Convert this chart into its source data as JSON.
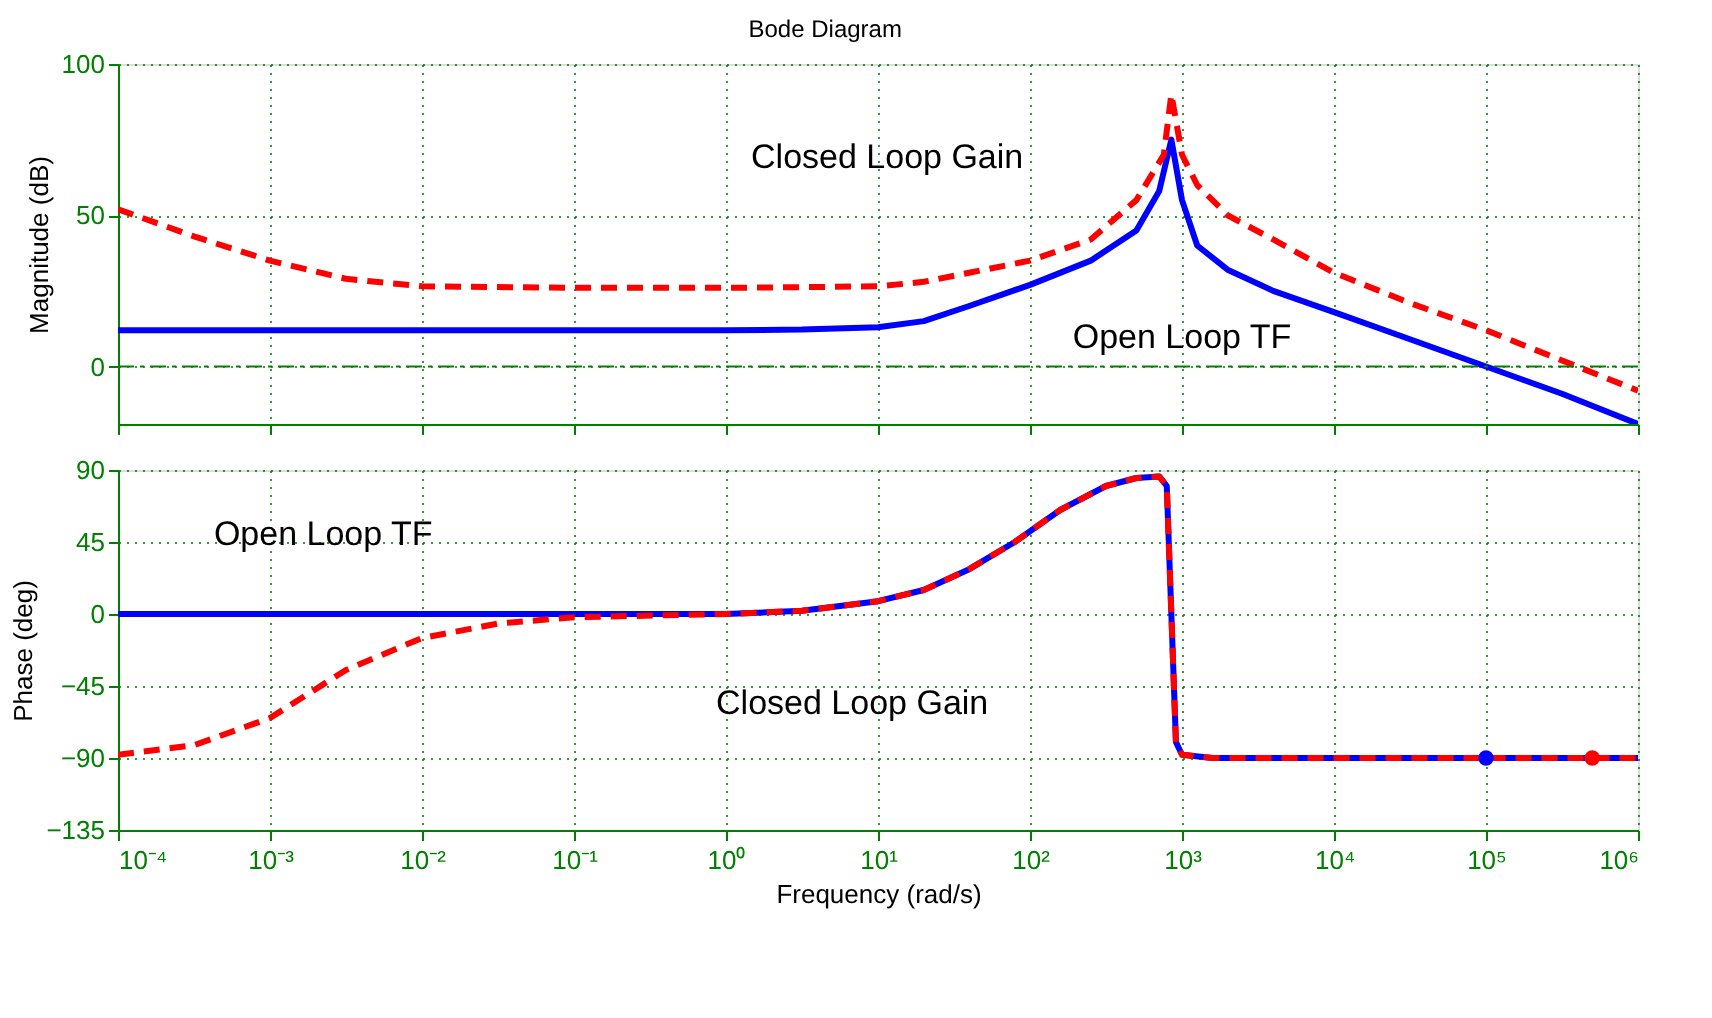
{
  "chart_data": [
    {
      "type": "line",
      "title": "Bode Diagram",
      "ylabel": "Magnitude (dB)",
      "log": "x",
      "grid": true,
      "legend": false,
      "tick_labels": "y",
      "xlim": [
        0.0001,
        1000000.0
      ],
      "xticks": [
        0.0001,
        0.001,
        0.01,
        0.1,
        1,
        10,
        100,
        1000,
        10000.0,
        100000.0,
        1000000.0
      ],
      "ylim": [
        -19,
        100
      ],
      "yticks": [
        0,
        50,
        100
      ],
      "series": [
        {
          "color": "#0000ff",
          "line_style": "solid",
          "x": [
            0.0001,
            1,
            3.16,
            10,
            20,
            39.8,
            100,
            251,
            501,
            708,
            851,
            1000,
            1259,
            1995,
            3981,
            10000.0,
            31623,
            100000.0,
            316228,
            1000000.0
          ],
          "values": [
            12,
            12,
            12.2,
            13,
            15,
            20,
            27,
            35,
            45,
            58,
            75,
            55,
            40,
            32,
            25,
            18,
            9,
            0,
            -9,
            -19
          ]
        },
        {
          "color": "#ff0000",
          "line_style": "dashed",
          "x": [
            0.0001,
            0.000316,
            0.001,
            0.00316,
            0.01,
            0.1,
            1,
            10,
            20,
            39.8,
            100,
            251,
            501,
            759,
            851,
            1000,
            1259,
            1995,
            3981,
            10000.0,
            31623,
            100000.0,
            316228,
            1000000.0
          ],
          "values": [
            52,
            43,
            35,
            29,
            26.5,
            26,
            26,
            26.5,
            28,
            31,
            35,
            42,
            55,
            70,
            90,
            70,
            60,
            50,
            42,
            31,
            21,
            12,
            2,
            -8
          ]
        }
      ],
      "ref_lines": [
        {
          "axis": "y",
          "value": 0,
          "color": "#008000",
          "line_style": "dashdot"
        }
      ],
      "annotations": [
        "Closed Loop Gain",
        "Open Loop TF"
      ]
    },
    {
      "type": "line",
      "xlabel": "Frequency (rad/s)",
      "ylabel": "Phase (deg)",
      "log": "x",
      "grid": true,
      "legend": false,
      "xlim": [
        0.0001,
        1000000.0
      ],
      "xticks": [
        {
          "value": 0.0001,
          "label": "10⁻⁴"
        },
        {
          "value": 0.001,
          "label": "10⁻³"
        },
        {
          "value": 0.01,
          "label": "10⁻²"
        },
        {
          "value": 0.1,
          "label": "10⁻¹"
        },
        {
          "value": 1,
          "label": "10⁰"
        },
        {
          "value": 10,
          "label": "10¹"
        },
        {
          "value": 100,
          "label": "10²"
        },
        {
          "value": 1000,
          "label": "10³"
        },
        {
          "value": 10000.0,
          "label": "10⁴"
        },
        {
          "value": 100000.0,
          "label": "10⁵"
        },
        {
          "value": 1000000.0,
          "label": "10⁶"
        }
      ],
      "ylim": [
        -135,
        90
      ],
      "yticks": [
        -135,
        -90,
        -45,
        0,
        45,
        90
      ],
      "series": [
        {
          "color": "#0000ff",
          "line_style": "solid",
          "x": [
            0.0001,
            1,
            3.16,
            10,
            20,
            39.8,
            79.4,
            158,
            316,
            501,
            708,
            794,
            851,
            912,
            1000,
            1585,
            1000000.0
          ],
          "values": [
            0,
            0,
            2,
            8,
            15,
            28,
            45,
            65,
            80,
            85,
            86,
            80,
            0,
            -80,
            -88,
            -90,
            -90
          ]
        },
        {
          "color": "#ff0000",
          "line_style": "dashed",
          "x": [
            0.0001,
            0.000316,
            0.001,
            0.00316,
            0.01,
            0.0316,
            0.1,
            1,
            3.16,
            10,
            20,
            39.8,
            79.4,
            158,
            316,
            501,
            708,
            794,
            851,
            912,
            1000,
            1585,
            1000000.0
          ],
          "values": [
            -88,
            -82,
            -65,
            -35,
            -15,
            -6,
            -2,
            0,
            2,
            8,
            15,
            28,
            45,
            65,
            80,
            85,
            86,
            80,
            0,
            -80,
            -88,
            -90,
            -90
          ]
        },
        {
          "type": "scatter",
          "marker": "circle",
          "color": "#0000ff",
          "x": [
            100000.0
          ],
          "values": [
            -90
          ]
        },
        {
          "type": "scatter",
          "marker": "circle",
          "color": "#ff0000",
          "x": [
            500000.0
          ],
          "values": [
            -90
          ]
        }
      ],
      "annotations": [
        "Open Loop TF",
        "Closed Loop Gain"
      ]
    }
  ]
}
